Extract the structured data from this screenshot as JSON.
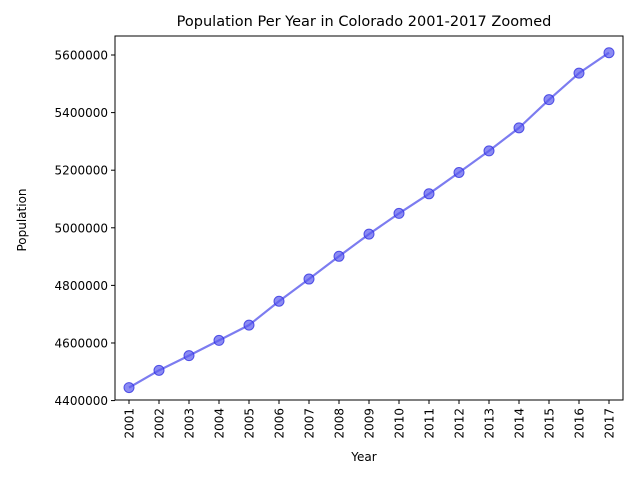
{
  "chart_data": {
    "type": "line",
    "title": "Population Per Year in Colorado 2001-2017 Zoomed",
    "xlabel": "Year",
    "ylabel": "Population",
    "categories": [
      "2001",
      "2002",
      "2003",
      "2004",
      "2005",
      "2006",
      "2007",
      "2008",
      "2009",
      "2010",
      "2011",
      "2012",
      "2013",
      "2014",
      "2015",
      "2016",
      "2017"
    ],
    "series": [
      {
        "values": [
          4445000,
          4505000,
          4556000,
          4609000,
          4662000,
          4745000,
          4822000,
          4901000,
          4978000,
          5050000,
          5118000,
          5192000,
          5267000,
          5347000,
          5445000,
          5537000,
          5608000
        ]
      }
    ],
    "yticks": [
      4400000,
      4600000,
      4800000,
      5000000,
      5200000,
      5400000,
      5600000
    ],
    "ylim": [
      4402000,
      5666000
    ],
    "grid": false,
    "line_color": "#7c7cf0",
    "marker_color": "#5a5aee"
  }
}
